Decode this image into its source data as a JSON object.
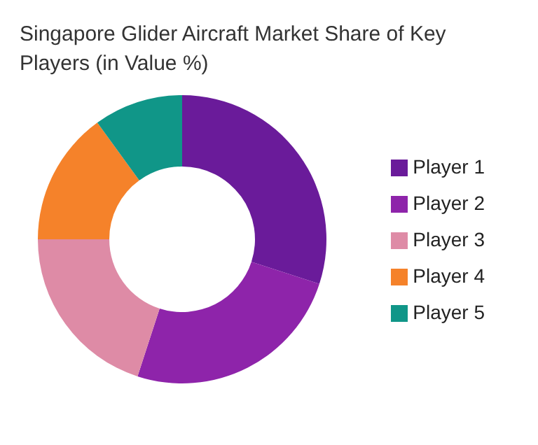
{
  "chart_data": {
    "type": "donut",
    "title": "Singapore Glider Aircraft Market Share of Key Players (in Value %)",
    "categories": [
      "Player 1",
      "Player 2",
      "Player 3",
      "Player 4",
      "Player 5"
    ],
    "values": [
      30,
      25,
      20,
      15,
      10
    ],
    "colors": [
      "#6a1b9a",
      "#8e24aa",
      "#de8ba6",
      "#f5822a",
      "#109688"
    ],
    "legend": "right"
  }
}
